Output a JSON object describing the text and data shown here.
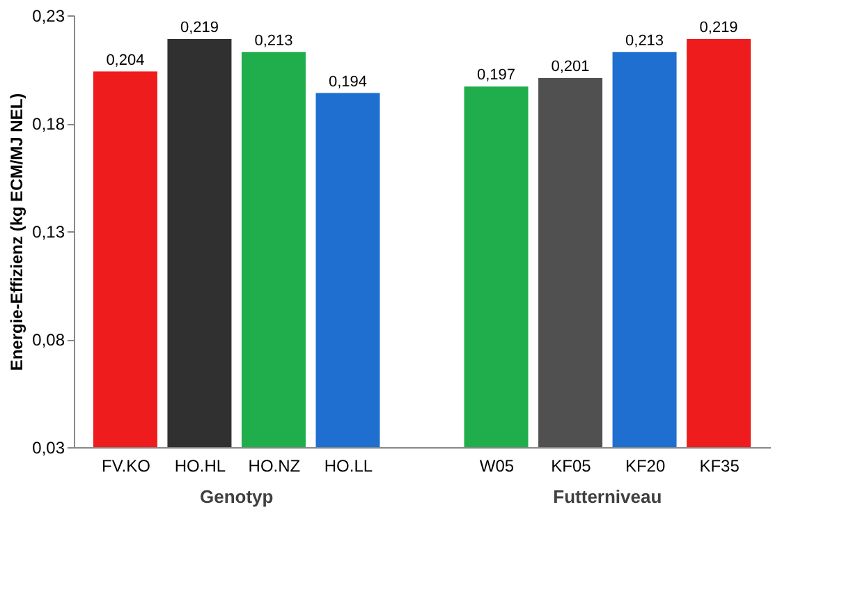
{
  "chart_data": {
    "type": "bar",
    "ylabel": "Energie-Effizienz (kg ECM/MJ NEL)",
    "categories": [
      "FV.KO",
      "HO.HL",
      "HO.NZ",
      "HO.LL",
      null,
      "W05",
      "KF05",
      "KF20",
      "KF35"
    ],
    "values": [
      0.204,
      0.219,
      0.213,
      0.194,
      null,
      0.197,
      0.201,
      0.213,
      0.219
    ],
    "colors": [
      "#ee1c1c",
      "#303030",
      "#1fae4b",
      "#1f6fd0",
      "#ffffff",
      "#1fae4b",
      "#505050",
      "#1f6fd0",
      "#ee1c1c"
    ],
    "value_labels": [
      "0,204",
      "0,219",
      "0,213",
      "0,194",
      null,
      "0,197",
      "0,201",
      "0,213",
      "0,219"
    ],
    "ylim": [
      0.03,
      0.23
    ],
    "yticks": [
      {
        "value": 0.03,
        "label": "0,03"
      },
      {
        "value": 0.08,
        "label": "0,08"
      },
      {
        "value": 0.13,
        "label": "0,13"
      },
      {
        "value": 0.18,
        "label": "0,18"
      },
      {
        "value": 0.23,
        "label": "0,23"
      }
    ],
    "annotations": [
      "Genotyp",
      "Futterniveau"
    ],
    "grid": false
  }
}
